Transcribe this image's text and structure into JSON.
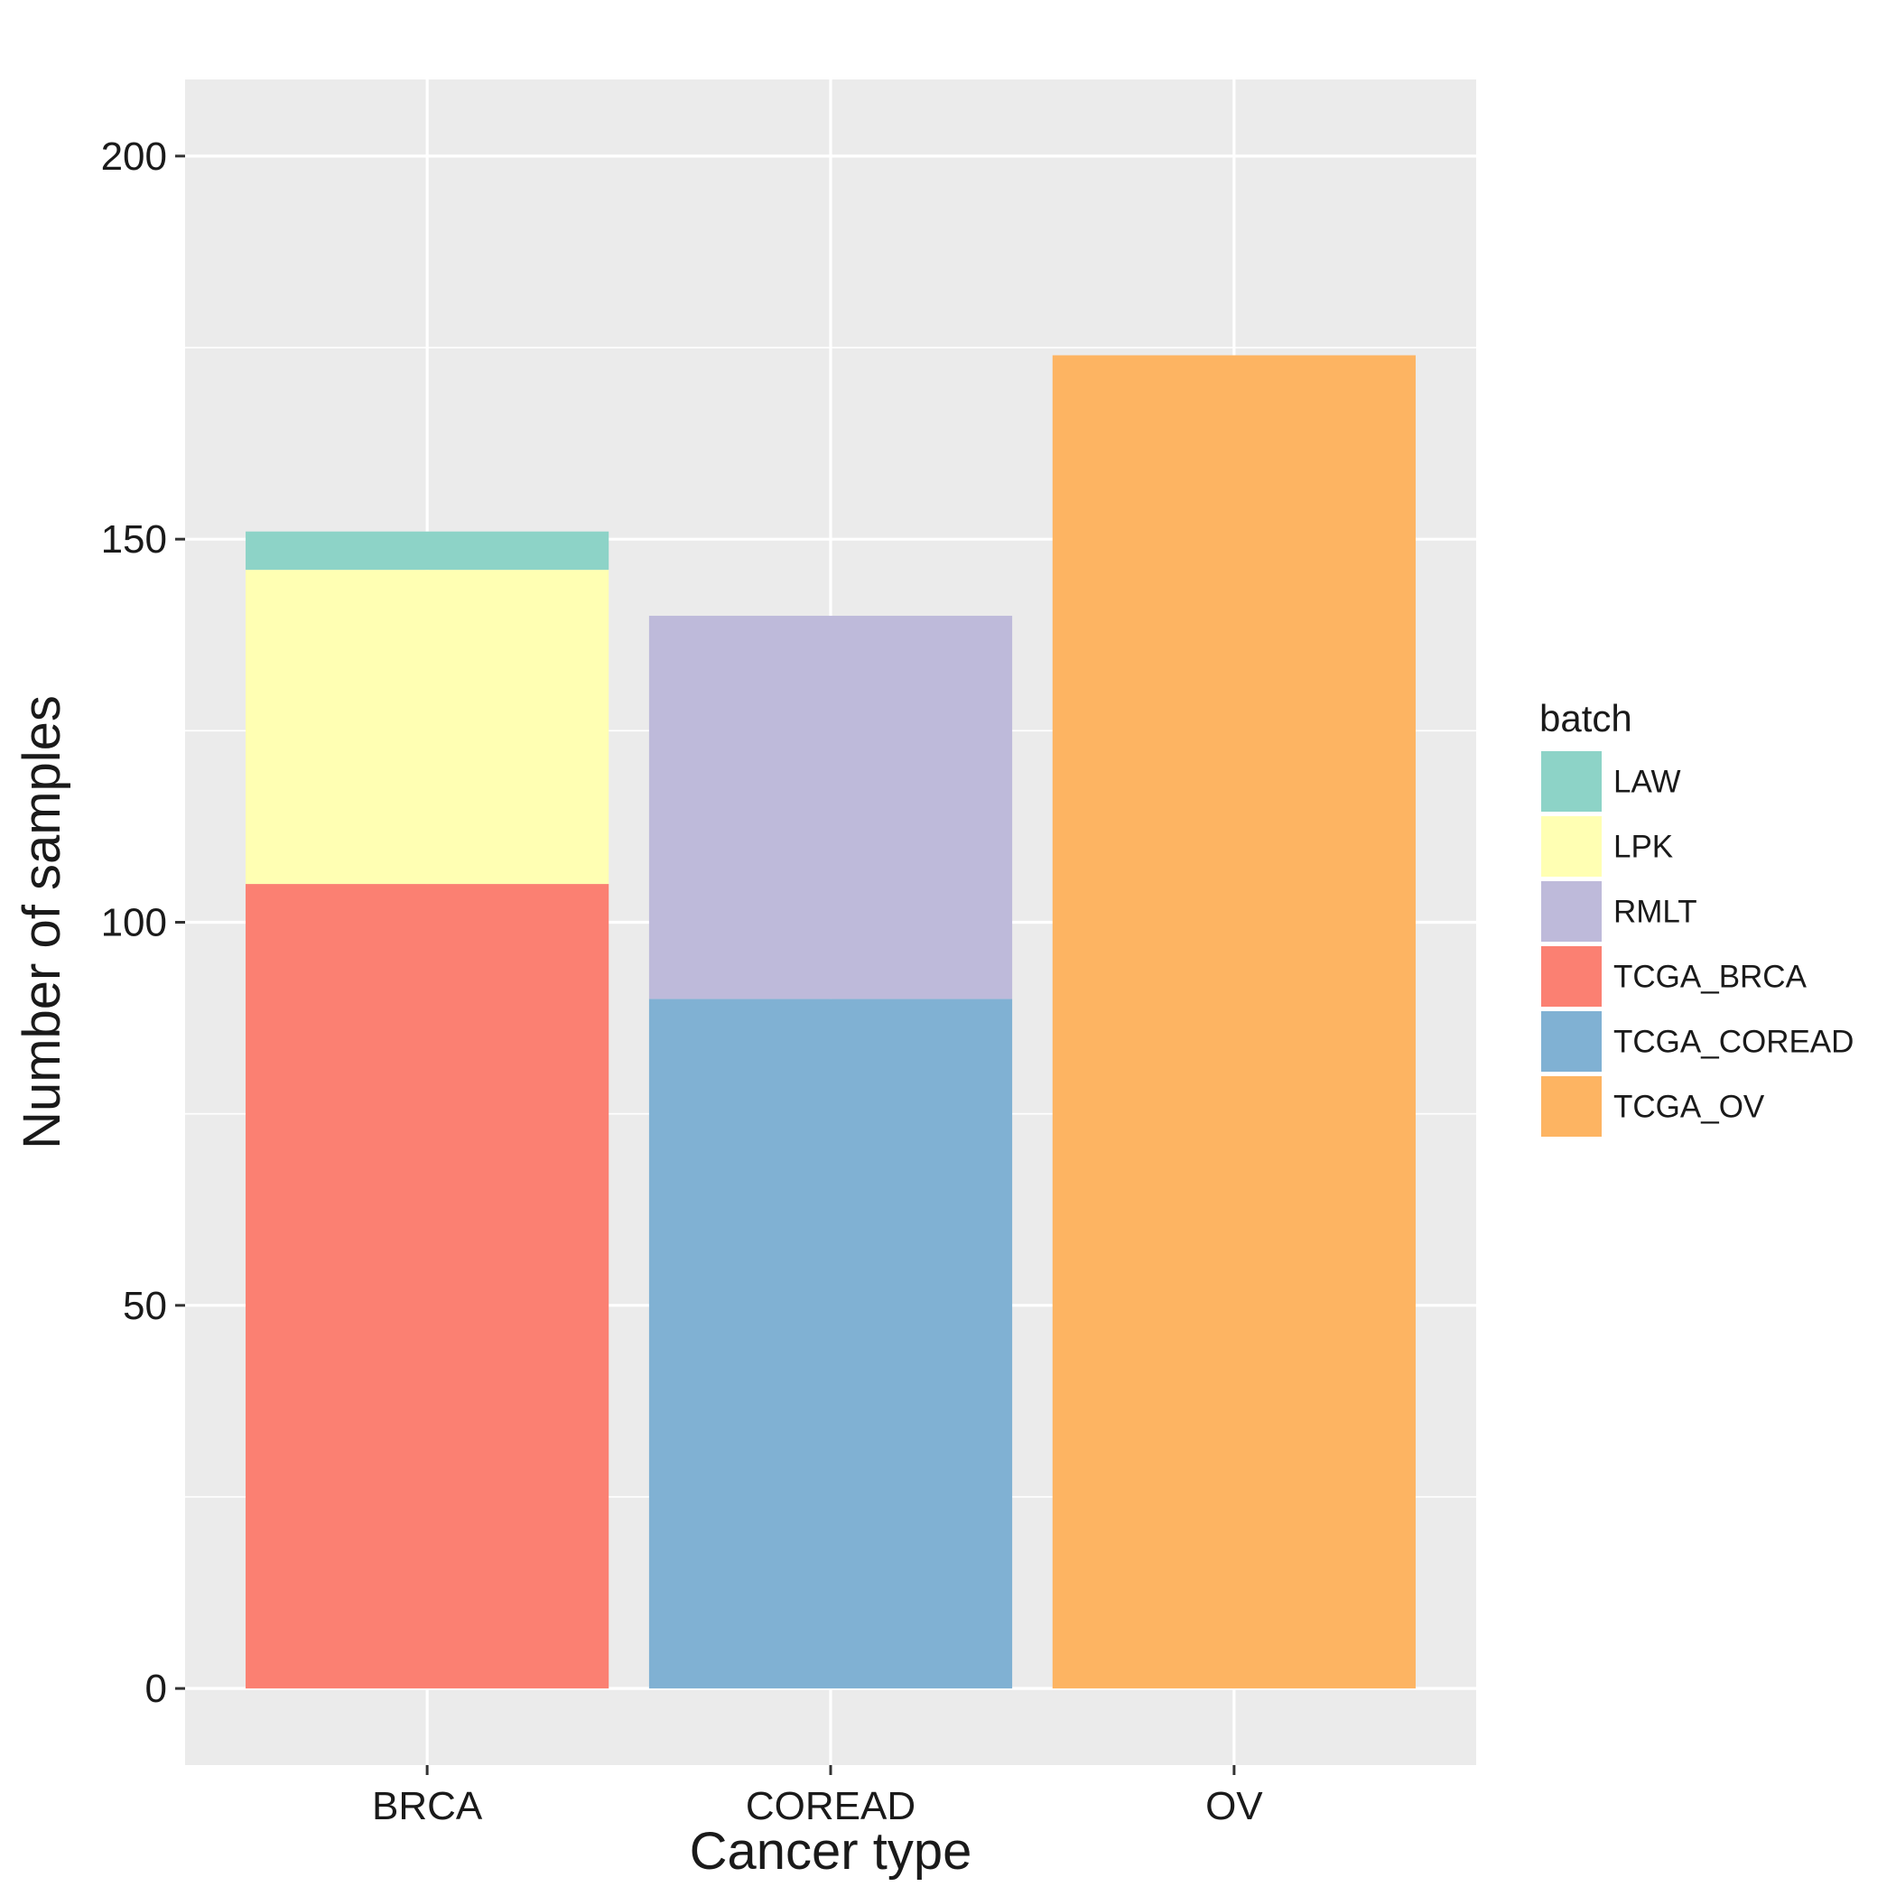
{
  "chart_data": {
    "type": "bar",
    "stacked": true,
    "categories": [
      "BRCA",
      "COREAD",
      "OV"
    ],
    "series": [
      {
        "name": "LAW",
        "color": "#8DD3C7",
        "values": [
          5,
          0,
          0
        ]
      },
      {
        "name": "LPK",
        "color": "#FFFFB3",
        "values": [
          41,
          0,
          0
        ]
      },
      {
        "name": "RMLT",
        "color": "#BEBADA",
        "values": [
          0,
          50,
          0
        ]
      },
      {
        "name": "TCGA_BRCA",
        "color": "#FB8072",
        "values": [
          105,
          0,
          0
        ]
      },
      {
        "name": "TCGA_COREAD",
        "color": "#80B1D3",
        "values": [
          0,
          90,
          0
        ]
      },
      {
        "name": "TCGA_OV",
        "color": "#FDB462",
        "values": [
          0,
          0,
          174
        ]
      }
    ],
    "stack_order_bottom_to_top": [
      "TCGA_BRCA",
      "TCGA_COREAD",
      "TCGA_OV",
      "RMLT",
      "LPK",
      "LAW"
    ],
    "xlabel": "Cancer type",
    "ylabel": "Number of samples",
    "ylim": [
      -10,
      210
    ],
    "yticks": [
      0,
      50,
      100,
      150,
      200
    ],
    "grid": true,
    "panel_background": "#EBEBEB",
    "legend": {
      "title": "batch",
      "position": "right"
    }
  }
}
